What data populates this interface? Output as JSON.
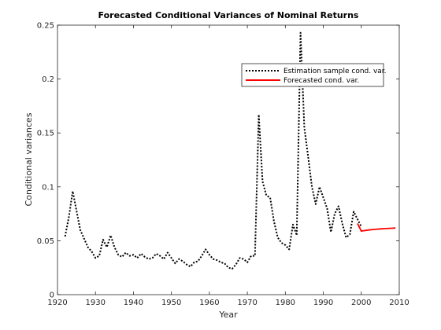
{
  "chart_data": {
    "type": "line",
    "title": "Forecasted Conditional Variances of Nominal Returns",
    "xlabel": "Year",
    "ylabel": "Conditional variances",
    "xlim": [
      1920,
      2010
    ],
    "ylim": [
      0,
      0.25
    ],
    "xticks": [
      1920,
      1930,
      1940,
      1950,
      1960,
      1970,
      1980,
      1990,
      2000,
      2010
    ],
    "yticks": [
      0,
      0.05,
      0.1,
      0.15,
      0.2,
      0.25
    ],
    "xtick_labels": [
      "1920",
      "1930",
      "1940",
      "1950",
      "1960",
      "1970",
      "1980",
      "1990",
      "2000",
      "2010"
    ],
    "ytick_labels": [
      "0",
      "0.05",
      "0.1",
      "0.15",
      "0.2",
      "0.25"
    ],
    "grid": false,
    "legend_position": "top-right",
    "series": [
      {
        "name": "Estimation sample cond. var.",
        "color": "#000000",
        "style": "dotted",
        "x": [
          1922,
          1923,
          1924,
          1925,
          1926,
          1927,
          1928,
          1929,
          1930,
          1931,
          1932,
          1933,
          1934,
          1935,
          1936,
          1937,
          1938,
          1939,
          1940,
          1941,
          1942,
          1943,
          1944,
          1945,
          1946,
          1947,
          1948,
          1949,
          1950,
          1951,
          1952,
          1953,
          1954,
          1955,
          1956,
          1957,
          1958,
          1959,
          1960,
          1961,
          1962,
          1963,
          1964,
          1965,
          1966,
          1967,
          1968,
          1969,
          1970,
          1971,
          1972,
          1973,
          1974,
          1975,
          1976,
          1977,
          1978,
          1979,
          1980,
          1981,
          1982,
          1983,
          1984,
          1985,
          1986,
          1987,
          1988,
          1989,
          1990,
          1991,
          1992,
          1993,
          1994,
          1995,
          1996,
          1997,
          1998,
          1999,
          2000
        ],
        "y": [
          0.054,
          0.072,
          0.096,
          0.078,
          0.06,
          0.052,
          0.044,
          0.04,
          0.034,
          0.036,
          0.051,
          0.044,
          0.055,
          0.044,
          0.037,
          0.035,
          0.039,
          0.036,
          0.037,
          0.034,
          0.038,
          0.035,
          0.033,
          0.034,
          0.038,
          0.036,
          0.033,
          0.039,
          0.034,
          0.029,
          0.033,
          0.031,
          0.028,
          0.026,
          0.03,
          0.031,
          0.036,
          0.042,
          0.037,
          0.033,
          0.032,
          0.03,
          0.029,
          0.025,
          0.024,
          0.028,
          0.034,
          0.033,
          0.03,
          0.036,
          0.036,
          0.167,
          0.105,
          0.092,
          0.09,
          0.068,
          0.053,
          0.048,
          0.046,
          0.042,
          0.065,
          0.055,
          0.243,
          0.155,
          0.128,
          0.1,
          0.084,
          0.1,
          0.09,
          0.08,
          0.058,
          0.075,
          0.082,
          0.066,
          0.053,
          0.056,
          0.077,
          0.07,
          0.063
        ]
      },
      {
        "name": "Forecasted cond. var.",
        "color": "#ff0000",
        "style": "solid",
        "x": [
          1999,
          2000,
          2001,
          2002,
          2003,
          2004,
          2005,
          2006,
          2007,
          2008,
          2009
        ],
        "y": [
          0.066,
          0.059,
          0.0595,
          0.06,
          0.0604,
          0.0607,
          0.061,
          0.0612,
          0.0614,
          0.0616,
          0.0618
        ]
      }
    ]
  }
}
